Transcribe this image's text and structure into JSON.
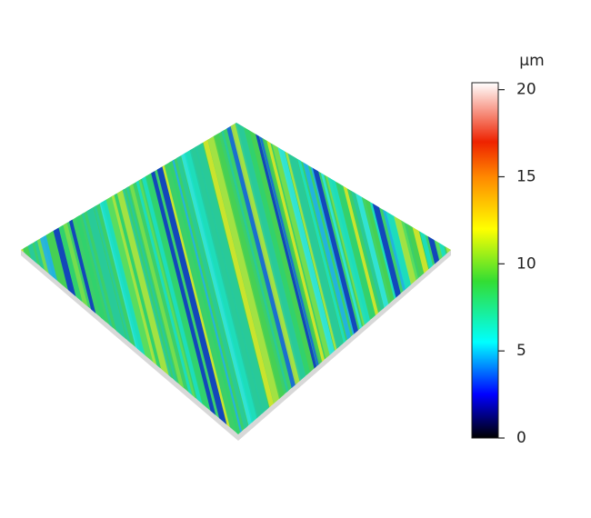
{
  "chart_data": {
    "type": "surface",
    "colorbar": {
      "title": "µm",
      "clim": [
        0,
        20.4
      ],
      "ticks": [
        0,
        5,
        10,
        15,
        20
      ],
      "colorscale": [
        [
          0,
          "#000000"
        ],
        [
          2.5,
          "#0000ff"
        ],
        [
          5.5,
          "#00ffff"
        ],
        [
          9,
          "#33dd33"
        ],
        [
          12,
          "#ffff00"
        ],
        [
          15,
          "#ff8800"
        ],
        [
          17,
          "#ee2200"
        ],
        [
          20.4,
          "#ffffff"
        ]
      ]
    }
  }
}
